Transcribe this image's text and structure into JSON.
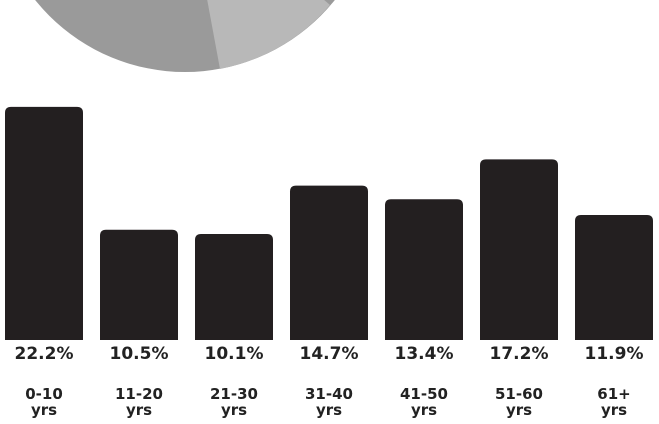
{
  "chart_data": {
    "type": "bar",
    "categories": [
      "0-10 yrs",
      "11-20 yrs",
      "21-30 yrs",
      "31-40 yrs",
      "41-50 yrs",
      "51-60 yrs",
      "61+ yrs"
    ],
    "values": [
      22.2,
      10.5,
      10.1,
      14.7,
      13.4,
      17.2,
      11.9
    ],
    "value_labels": [
      "22.2%",
      "10.5%",
      "10.1%",
      "14.7%",
      "13.4%",
      "17.2%",
      "11.9%"
    ],
    "color": "#231f20",
    "ylim": [
      0,
      30
    ]
  }
}
